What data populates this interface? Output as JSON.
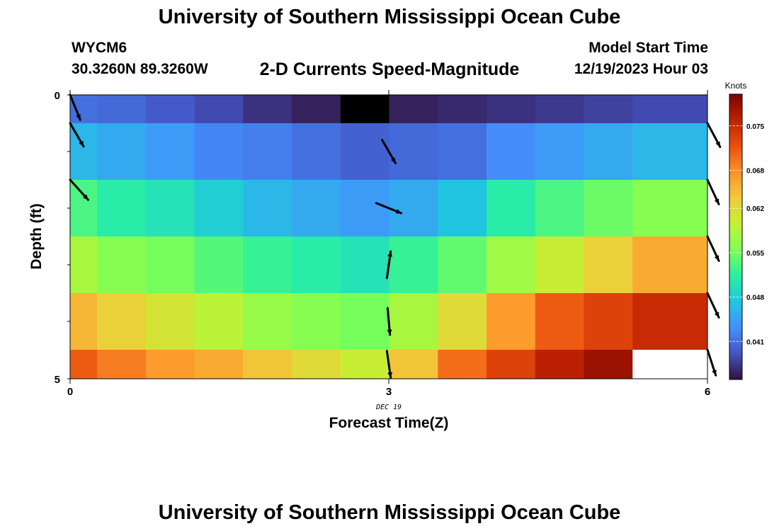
{
  "header": {
    "title": "University of Southern Mississippi Ocean Cube",
    "station_id": "WYCM6",
    "coordinates": "30.3260N  89.3260W",
    "subtitle": "2-D Currents Speed-Magnitude",
    "model_start_label": "Model Start Time",
    "model_start_value": "12/19/2023 Hour 03"
  },
  "footer": {
    "title": "University of Southern Mississippi Ocean Cube"
  },
  "chart_data": {
    "type": "heatmap",
    "title": "2-D Currents Speed-Magnitude",
    "xlabel": "Forecast Time(Z)",
    "ylabel": "Depth (ft)",
    "xlim": [
      0,
      6
    ],
    "ylim": [
      0,
      5
    ],
    "x_ticks": [
      0,
      3,
      6
    ],
    "x_tick_labels": [
      "0",
      "3",
      "6"
    ],
    "x_date_label": "DEC 19",
    "y_tick_labels": [
      "0",
      "5"
    ],
    "colorbar": {
      "label": "Knots",
      "min": 0.035,
      "max": 0.08,
      "ticks": [
        0.041,
        0.048,
        0.055,
        0.062,
        0.068,
        0.075
      ],
      "tick_labels": [
        "0.041",
        "0.048",
        "0.055",
        "0.062",
        "0.068",
        "0.075"
      ],
      "colors": [
        "#30123b",
        "#4454c4",
        "#4490fe",
        "#1fc8de",
        "#29efa2",
        "#7eff55",
        "#c3f134",
        "#f1ca3a",
        "#fe922a",
        "#ea4f0d",
        "#be2102",
        "#7a0403"
      ]
    },
    "rows": [
      [
        0.041,
        0.0405,
        0.0395,
        0.0385,
        0.037,
        0.036,
        null,
        0.036,
        0.0365,
        0.037,
        0.0375,
        0.038,
        0.0385
      ],
      [
        0.046,
        0.045,
        0.044,
        0.0425,
        0.042,
        0.041,
        0.04,
        0.0405,
        0.041,
        0.043,
        0.044,
        0.045,
        0.046
      ],
      [
        0.053,
        0.051,
        0.05,
        0.048,
        0.046,
        0.045,
        0.044,
        0.045,
        0.047,
        0.051,
        0.053,
        0.0545,
        0.056
      ],
      [
        0.058,
        0.056,
        0.055,
        0.0535,
        0.052,
        0.051,
        0.05,
        0.052,
        0.054,
        0.0575,
        0.06,
        0.063,
        0.066
      ],
      [
        0.065,
        0.063,
        0.061,
        0.059,
        0.057,
        0.056,
        0.055,
        0.058,
        0.062,
        0.067,
        0.071,
        0.073,
        0.075
      ],
      [
        0.071,
        0.069,
        0.067,
        0.066,
        0.064,
        0.062,
        0.06,
        0.064,
        0.07,
        0.073,
        0.076,
        0.078,
        null
      ]
    ],
    "vectors": [
      {
        "x": 0,
        "row": 0,
        "dir_deg": 158
      },
      {
        "x": 0,
        "row": 1,
        "dir_deg": 150
      },
      {
        "x": 0,
        "row": 2,
        "dir_deg": 138
      },
      {
        "x": 3,
        "row": 1,
        "dir_deg": 150
      },
      {
        "x": 3,
        "row": 2,
        "dir_deg": 112
      },
      {
        "x": 3,
        "row": 3,
        "dir_deg": 8
      },
      {
        "x": 3,
        "row": 4,
        "dir_deg": 175
      },
      {
        "x": 3,
        "row": 5,
        "dir_deg": 172
      },
      {
        "x": 6,
        "row": 1,
        "dir_deg": 152
      },
      {
        "x": 6,
        "row": 2,
        "dir_deg": 155
      },
      {
        "x": 6,
        "row": 3,
        "dir_deg": 155
      },
      {
        "x": 6,
        "row": 4,
        "dir_deg": 155
      },
      {
        "x": 6,
        "row": 5,
        "dir_deg": 162
      }
    ]
  }
}
